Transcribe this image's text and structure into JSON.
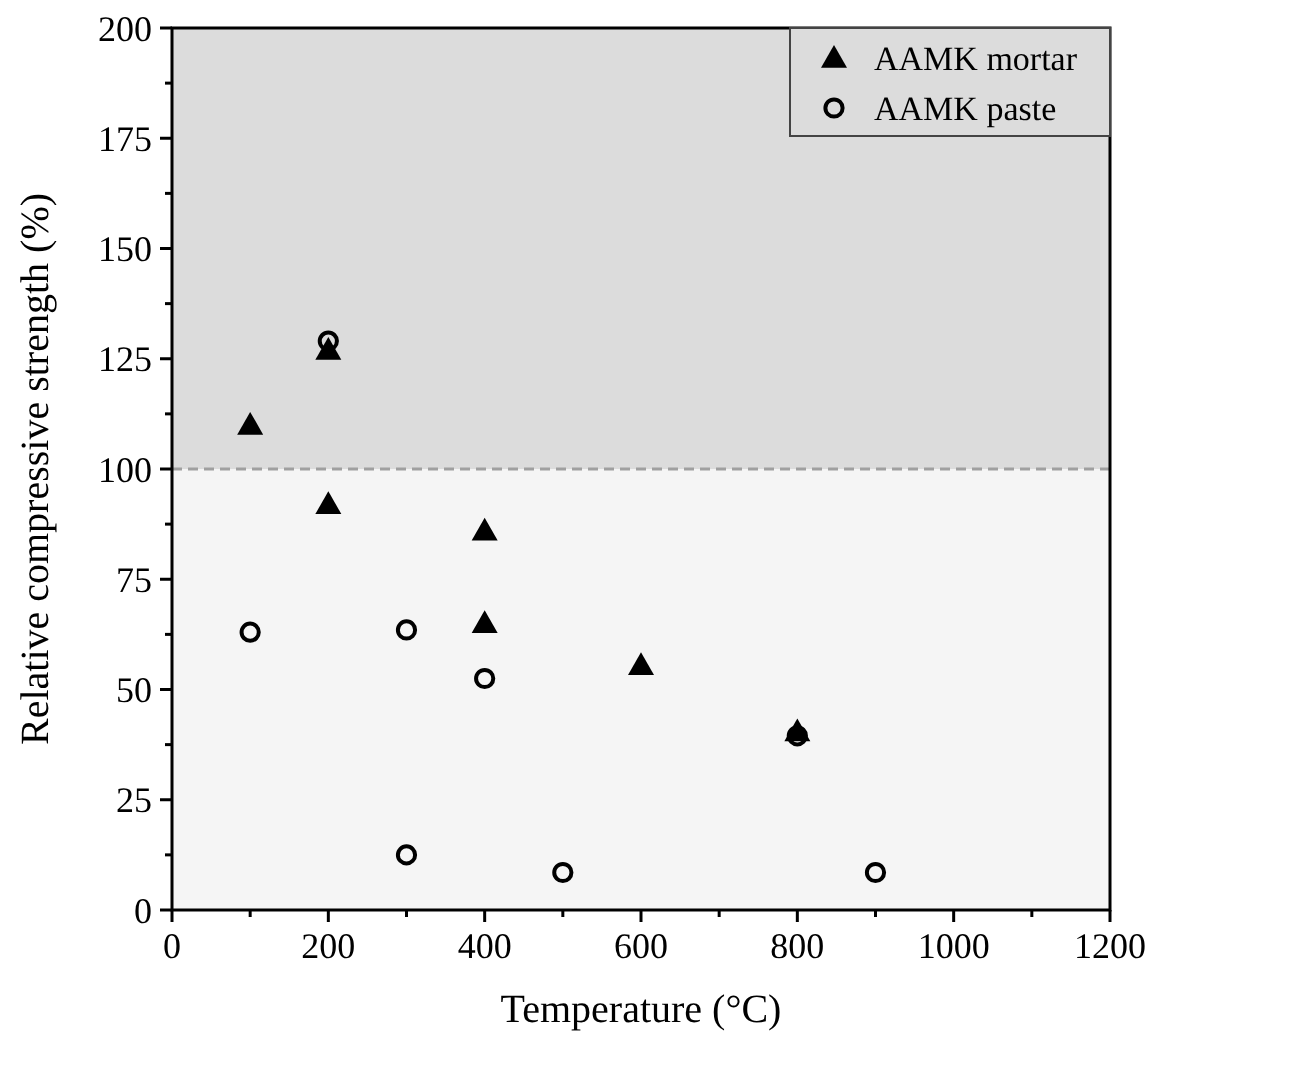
{
  "chart_data": {
    "type": "scatter",
    "xlabel": "Temperature (°C)",
    "ylabel": "Relative compressive strength (%)",
    "xlim": [
      0,
      1200
    ],
    "xticks": [
      0,
      200,
      400,
      600,
      800,
      1000,
      1200
    ],
    "ylim": [
      0,
      200
    ],
    "yticks": [
      0,
      25,
      50,
      75,
      100,
      125,
      150,
      175,
      200
    ],
    "series": [
      {
        "name": "AAMK mortar",
        "color": "#000000",
        "marker": "triangle",
        "x": [
          100,
          200,
          200,
          400,
          400,
          600,
          800
        ],
        "values": [
          110,
          127,
          92,
          86,
          65,
          55.5,
          40.5
        ]
      },
      {
        "name": "AAMK paste",
        "color": "#000000",
        "marker": "circle",
        "x": [
          100,
          200,
          300,
          300,
          400,
          500,
          800,
          900
        ],
        "values": [
          63,
          129,
          63.5,
          12.5,
          52.5,
          8.5,
          39.5,
          8.5
        ]
      }
    ],
    "bands": [
      {
        "axis": "y",
        "from": 100,
        "to": 200,
        "color": "#dcdcdc"
      },
      {
        "axis": "y",
        "from": 0,
        "to": 100,
        "color": "#f5f5f5"
      }
    ],
    "ref_lines": [
      {
        "axis": "y",
        "value": 100,
        "color": "#a0a0a0",
        "line_style": "dashed"
      }
    ],
    "legend": "top right",
    "grid": false
  }
}
